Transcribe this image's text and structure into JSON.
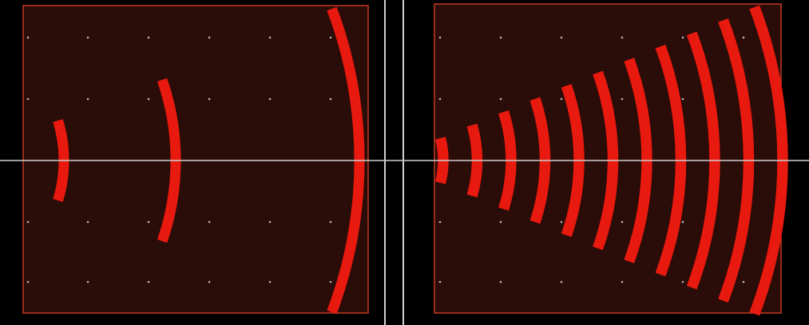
{
  "colors": {
    "background": "#000000",
    "panel_fill": "#2a0c08",
    "panel_border": "#c23a22",
    "arc": "#e8190e",
    "crosshair": "#cfcfcf",
    "grid_dot": "#b8b8b8"
  },
  "panels": [
    {
      "name": "left-panel",
      "arc_count": 3
    },
    {
      "name": "right-panel",
      "arc_count": 11
    }
  ]
}
